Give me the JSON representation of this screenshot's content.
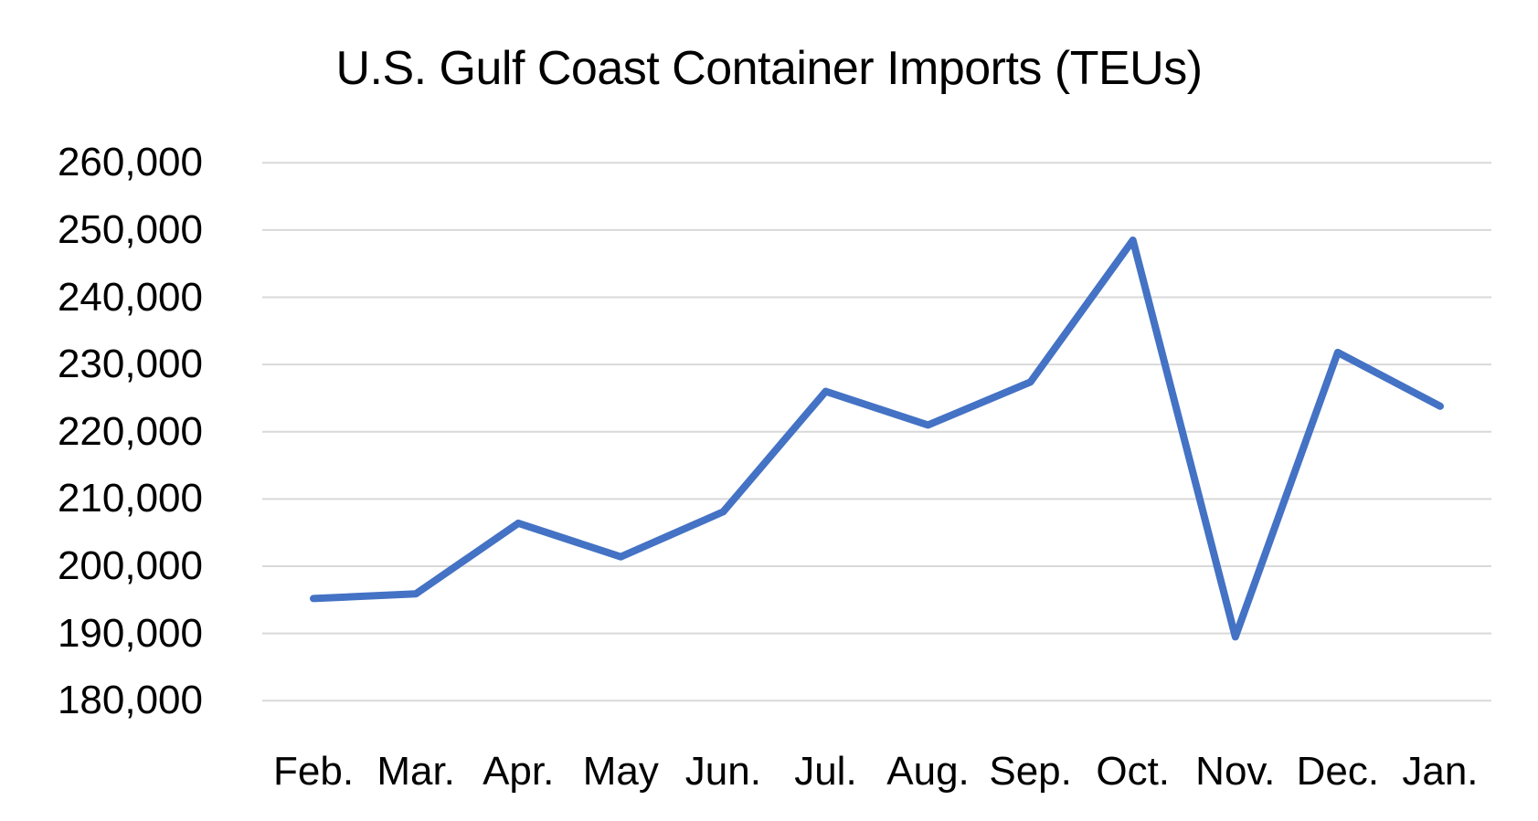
{
  "chart_data": {
    "type": "line",
    "title": "U.S. Gulf Coast Container Imports (TEUs)",
    "xlabel": "",
    "ylabel": "",
    "categories": [
      "Feb.",
      "Mar.",
      "Apr.",
      "May",
      "Jun.",
      "Jul.",
      "Aug.",
      "Sep.",
      "Oct.",
      "Nov.",
      "Dec.",
      "Jan."
    ],
    "series": [
      {
        "name": "U.S. Gulf Coast Container Imports (TEUs)",
        "color": "#4472C4",
        "values": [
          195200,
          195900,
          206400,
          201400,
          208100,
          226000,
          221000,
          227400,
          248500,
          189500,
          231800,
          223800
        ]
      }
    ],
    "ylim": [
      180000,
      260000
    ],
    "yticks": [
      180000,
      190000,
      200000,
      210000,
      220000,
      230000,
      240000,
      250000,
      260000
    ],
    "ytick_labels": [
      "180,000",
      "190,000",
      "200,000",
      "210,000",
      "220,000",
      "230,000",
      "240,000",
      "250,000",
      "260,000"
    ],
    "grid": true,
    "grid_color": "#D9D9D9",
    "legend": "none"
  }
}
